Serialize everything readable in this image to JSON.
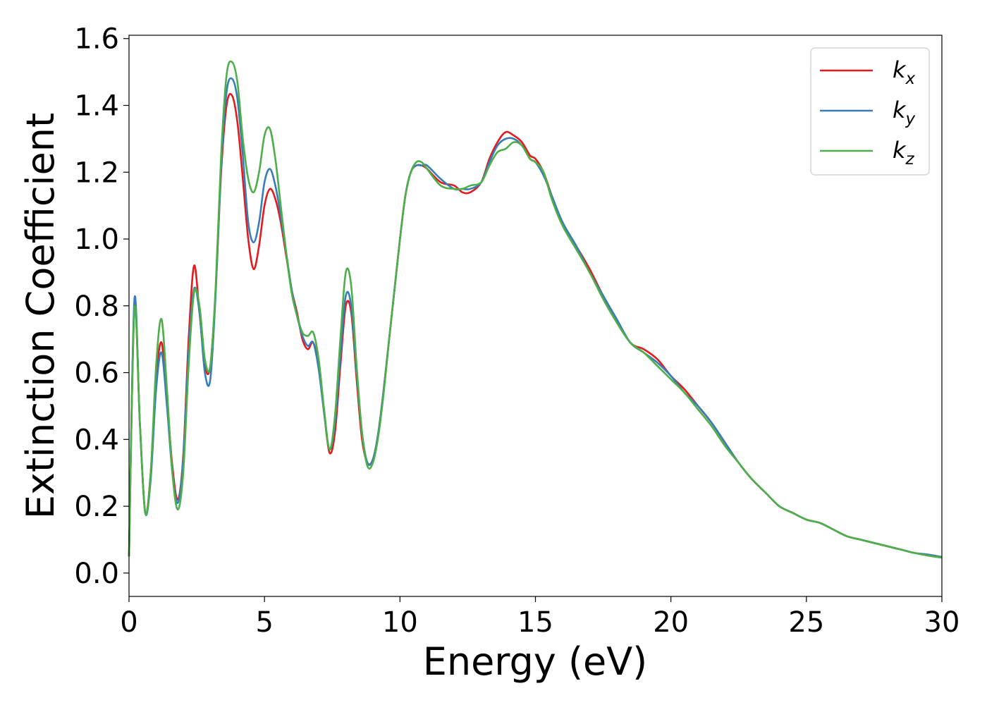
{
  "chart_data": {
    "type": "line",
    "title": "",
    "xlabel": "Energy (eV)",
    "ylabel": "Extinction Coefficient",
    "xlim": [
      0,
      30
    ],
    "ylim": [
      -0.07,
      1.61
    ],
    "xticks": [
      0,
      5,
      10,
      15,
      20,
      25,
      30
    ],
    "xtick_labels": [
      "0",
      "5",
      "10",
      "15",
      "20",
      "25",
      "30"
    ],
    "yticks": [
      0.0,
      0.2,
      0.4,
      0.6,
      0.8,
      1.0,
      1.2,
      1.4,
      1.6
    ],
    "ytick_labels": [
      "0.0",
      "0.2",
      "0.4",
      "0.6",
      "0.8",
      "1.0",
      "1.2",
      "1.4",
      "1.6"
    ],
    "grid": false,
    "legend_position": "top-right",
    "series": [
      {
        "name": "k",
        "subscript": "x",
        "color": "#e41a1c",
        "x": [
          0,
          0.2,
          0.4,
          0.6,
          0.8,
          1.0,
          1.2,
          1.4,
          1.6,
          1.8,
          2.0,
          2.2,
          2.4,
          2.6,
          2.8,
          3.0,
          3.2,
          3.4,
          3.6,
          3.8,
          4.0,
          4.2,
          4.4,
          4.6,
          4.8,
          5.0,
          5.2,
          5.4,
          5.6,
          5.8,
          6.0,
          6.2,
          6.4,
          6.6,
          6.8,
          7.0,
          7.2,
          7.4,
          7.6,
          7.8,
          8.0,
          8.2,
          8.4,
          8.6,
          8.8,
          9.0,
          9.2,
          9.4,
          9.6,
          9.8,
          10.0,
          10.2,
          10.4,
          10.6,
          10.8,
          11.0,
          11.5,
          12.0,
          12.3,
          12.6,
          13.0,
          13.3,
          13.6,
          13.9,
          14.2,
          14.5,
          14.8,
          15.0,
          15.3,
          15.6,
          16.0,
          16.5,
          17.0,
          17.5,
          18.0,
          18.5,
          19.0,
          19.5,
          20.0,
          20.5,
          21.0,
          21.5,
          22.0,
          22.5,
          23.0,
          23.5,
          24.0,
          24.5,
          25.0,
          25.5,
          26.0,
          26.5,
          27.0,
          27.5,
          28.0,
          28.5,
          29.0,
          29.5,
          30.0
        ],
        "y": [
          0.05,
          0.8,
          0.45,
          0.18,
          0.3,
          0.58,
          0.69,
          0.52,
          0.32,
          0.22,
          0.35,
          0.7,
          0.92,
          0.78,
          0.62,
          0.62,
          0.85,
          1.2,
          1.4,
          1.43,
          1.35,
          1.18,
          1.0,
          0.91,
          0.98,
          1.1,
          1.15,
          1.12,
          1.05,
          0.95,
          0.85,
          0.78,
          0.7,
          0.67,
          0.69,
          0.62,
          0.48,
          0.36,
          0.42,
          0.62,
          0.8,
          0.78,
          0.58,
          0.4,
          0.33,
          0.34,
          0.42,
          0.55,
          0.7,
          0.85,
          1.0,
          1.13,
          1.2,
          1.22,
          1.22,
          1.21,
          1.17,
          1.16,
          1.14,
          1.14,
          1.17,
          1.24,
          1.29,
          1.32,
          1.31,
          1.29,
          1.25,
          1.24,
          1.2,
          1.13,
          1.05,
          0.98,
          0.91,
          0.83,
          0.76,
          0.69,
          0.67,
          0.64,
          0.59,
          0.55,
          0.5,
          0.45,
          0.39,
          0.33,
          0.28,
          0.24,
          0.2,
          0.18,
          0.16,
          0.15,
          0.13,
          0.11,
          0.1,
          0.09,
          0.08,
          0.07,
          0.06,
          0.055,
          0.048
        ]
      },
      {
        "name": "k",
        "subscript": "y",
        "color": "#377eb8",
        "x": [
          0,
          0.2,
          0.4,
          0.6,
          0.8,
          1.0,
          1.2,
          1.4,
          1.6,
          1.8,
          2.0,
          2.2,
          2.4,
          2.6,
          2.8,
          3.0,
          3.2,
          3.4,
          3.6,
          3.8,
          4.0,
          4.2,
          4.4,
          4.6,
          4.8,
          5.0,
          5.2,
          5.4,
          5.6,
          5.8,
          6.0,
          6.2,
          6.4,
          6.6,
          6.8,
          7.0,
          7.2,
          7.4,
          7.6,
          7.8,
          8.0,
          8.2,
          8.4,
          8.6,
          8.8,
          9.0,
          9.2,
          9.4,
          9.6,
          9.8,
          10.0,
          10.2,
          10.4,
          10.6,
          10.8,
          11.0,
          11.5,
          12.0,
          12.3,
          12.6,
          13.0,
          13.3,
          13.6,
          13.9,
          14.2,
          14.5,
          14.8,
          15.0,
          15.3,
          15.6,
          16.0,
          16.5,
          17.0,
          17.5,
          18.0,
          18.5,
          19.0,
          19.5,
          20.0,
          20.5,
          21.0,
          21.5,
          22.0,
          22.5,
          23.0,
          23.5,
          24.0,
          24.5,
          25.0,
          25.5,
          26.0,
          26.5,
          27.0,
          27.5,
          28.0,
          28.5,
          29.0,
          29.5,
          30.0
        ],
        "y": [
          0.05,
          0.82,
          0.45,
          0.18,
          0.28,
          0.55,
          0.66,
          0.5,
          0.3,
          0.21,
          0.34,
          0.66,
          0.85,
          0.78,
          0.6,
          0.58,
          0.84,
          1.22,
          1.44,
          1.48,
          1.42,
          1.25,
          1.05,
          0.99,
          1.05,
          1.17,
          1.21,
          1.16,
          1.07,
          0.96,
          0.85,
          0.77,
          0.71,
          0.68,
          0.69,
          0.61,
          0.48,
          0.37,
          0.45,
          0.65,
          0.83,
          0.8,
          0.6,
          0.42,
          0.33,
          0.34,
          0.42,
          0.55,
          0.7,
          0.85,
          1.0,
          1.13,
          1.2,
          1.22,
          1.22,
          1.22,
          1.18,
          1.15,
          1.15,
          1.15,
          1.17,
          1.23,
          1.28,
          1.3,
          1.3,
          1.28,
          1.24,
          1.23,
          1.19,
          1.13,
          1.05,
          0.98,
          0.9,
          0.83,
          0.76,
          0.69,
          0.66,
          0.63,
          0.59,
          0.54,
          0.5,
          0.45,
          0.39,
          0.33,
          0.28,
          0.24,
          0.2,
          0.18,
          0.16,
          0.15,
          0.13,
          0.11,
          0.1,
          0.09,
          0.08,
          0.07,
          0.06,
          0.055,
          0.048
        ]
      },
      {
        "name": "k",
        "subscript": "z",
        "color": "#4daf4a",
        "x": [
          0,
          0.2,
          0.4,
          0.6,
          0.8,
          1.0,
          1.2,
          1.4,
          1.6,
          1.8,
          2.0,
          2.2,
          2.4,
          2.6,
          2.8,
          3.0,
          3.2,
          3.4,
          3.6,
          3.8,
          4.0,
          4.2,
          4.4,
          4.6,
          4.8,
          5.0,
          5.2,
          5.4,
          5.6,
          5.8,
          6.0,
          6.2,
          6.4,
          6.6,
          6.8,
          7.0,
          7.2,
          7.4,
          7.6,
          7.8,
          8.0,
          8.2,
          8.4,
          8.6,
          8.8,
          9.0,
          9.2,
          9.4,
          9.6,
          9.8,
          10.0,
          10.2,
          10.4,
          10.6,
          10.8,
          11.0,
          11.5,
          12.0,
          12.3,
          12.6,
          13.0,
          13.3,
          13.6,
          13.9,
          14.2,
          14.5,
          14.8,
          15.0,
          15.3,
          15.6,
          16.0,
          16.5,
          17.0,
          17.5,
          18.0,
          18.5,
          19.0,
          19.5,
          20.0,
          20.5,
          21.0,
          21.5,
          22.0,
          22.5,
          23.0,
          23.5,
          24.0,
          24.5,
          25.0,
          25.5,
          26.0,
          26.5,
          27.0,
          27.5,
          28.0,
          28.5,
          29.0,
          29.5,
          30.0
        ],
        "y": [
          0.05,
          0.79,
          0.45,
          0.18,
          0.3,
          0.62,
          0.76,
          0.55,
          0.3,
          0.19,
          0.3,
          0.62,
          0.84,
          0.8,
          0.64,
          0.62,
          0.86,
          1.25,
          1.49,
          1.53,
          1.47,
          1.3,
          1.18,
          1.14,
          1.2,
          1.31,
          1.33,
          1.24,
          1.1,
          0.96,
          0.84,
          0.77,
          0.72,
          0.71,
          0.72,
          0.64,
          0.49,
          0.37,
          0.47,
          0.7,
          0.9,
          0.86,
          0.62,
          0.42,
          0.32,
          0.33,
          0.41,
          0.54,
          0.7,
          0.85,
          1.0,
          1.13,
          1.2,
          1.23,
          1.23,
          1.21,
          1.16,
          1.15,
          1.15,
          1.16,
          1.17,
          1.22,
          1.26,
          1.27,
          1.29,
          1.28,
          1.24,
          1.23,
          1.2,
          1.12,
          1.04,
          0.97,
          0.9,
          0.82,
          0.75,
          0.69,
          0.66,
          0.62,
          0.58,
          0.54,
          0.49,
          0.44,
          0.38,
          0.33,
          0.28,
          0.24,
          0.2,
          0.18,
          0.16,
          0.15,
          0.13,
          0.11,
          0.1,
          0.09,
          0.08,
          0.07,
          0.06,
          0.052,
          0.046
        ]
      }
    ]
  }
}
